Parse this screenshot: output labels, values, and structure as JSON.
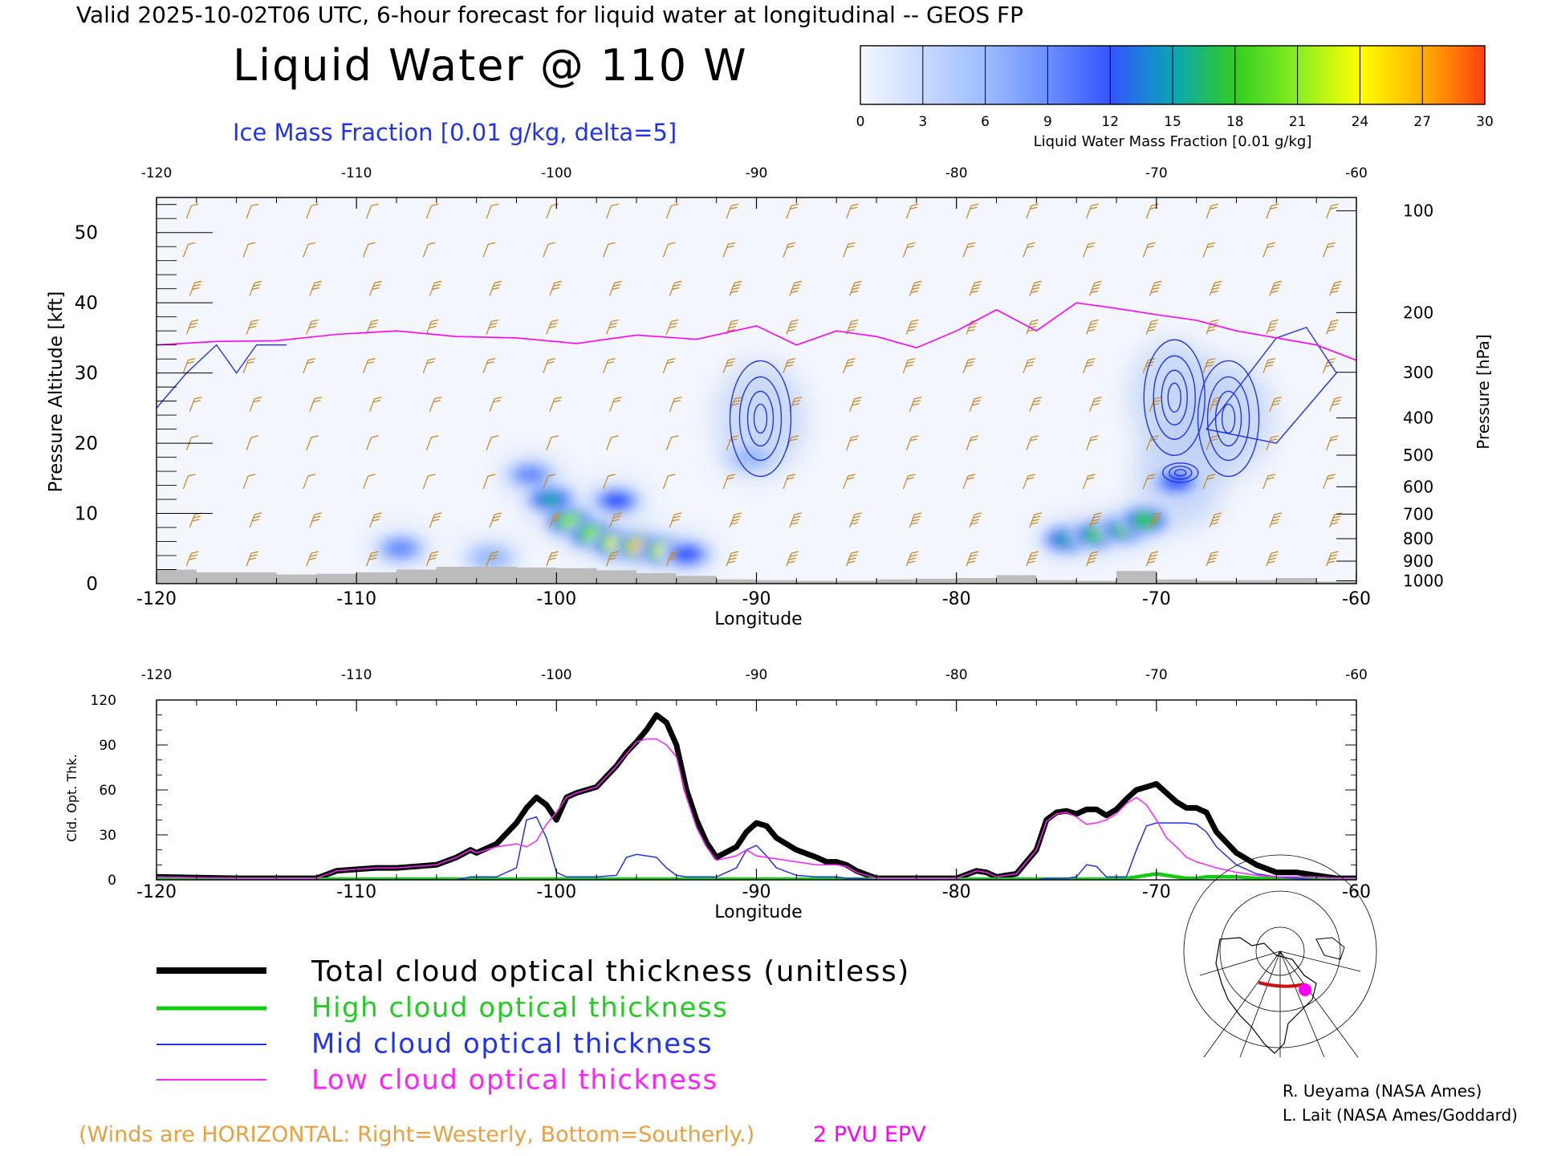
{
  "header": {
    "valid_line": "Valid 2025-10-02T06 UTC, 6-hour forecast for liquid water at longitudinal -- GEOS FP",
    "title": "Liquid Water @ 110 W",
    "ice_label": "Ice Mass Fraction [0.01 g/kg, delta=5]"
  },
  "colorbar": {
    "ticks": [
      "0",
      "3",
      "6",
      "9",
      "12",
      "15",
      "18",
      "21",
      "24",
      "27",
      "30"
    ],
    "label": "Liquid Water Mass Fraction [0.01 g/kg]",
    "colors": [
      "#f4f7ff",
      "#c9d9ff",
      "#9cbcff",
      "#6a8eff",
      "#3355ff",
      "#0aa5b5",
      "#33cc22",
      "#88ee22",
      "#ffff00",
      "#ffb000",
      "#ff4010"
    ]
  },
  "colors": {
    "wind_barbs": "#c88a2a",
    "epv": "#ff00ff",
    "ice": "#2233ee",
    "terrain": "#bcbcbc",
    "total": "#000000",
    "high": "#11cc11",
    "mid": "#2233ee",
    "low": "#ff22ff"
  },
  "chart_data": [
    {
      "type": "heatmap",
      "title": "Liquid Water @ 110 W",
      "xlabel": "Longitude",
      "ylabel": "Pressure Altitude [kft]",
      "ylabel_right": "Pressure [hPa]",
      "xlim": [
        -120,
        -60
      ],
      "ylim": [
        0,
        55
      ],
      "x_ticks": [
        "-120",
        "-110",
        "-100",
        "-90",
        "-80",
        "-70",
        "-60"
      ],
      "y_ticks": [
        "0",
        "10",
        "20",
        "30",
        "40",
        "50"
      ],
      "pressure_ticks": [
        "100",
        "200",
        "300",
        "400",
        "500",
        "600",
        "700",
        "800",
        "900",
        "1000"
      ],
      "pressure_tick_alt_kft": [
        53.1,
        38.6,
        30.1,
        23.6,
        18.3,
        13.8,
        9.9,
        6.4,
        3.2,
        0.4
      ],
      "liquid_water_blobs": [
        {
          "lon": -101.3,
          "alt": 15.5,
          "value": 9
        },
        {
          "lon": -100.3,
          "alt": 12.0,
          "value": 15
        },
        {
          "lon": -99.3,
          "alt": 8.8,
          "value": 20
        },
        {
          "lon": -98.2,
          "alt": 7.0,
          "value": 21
        },
        {
          "lon": -97.0,
          "alt": 5.6,
          "value": 25
        },
        {
          "lon": -95.8,
          "alt": 5.2,
          "value": 28
        },
        {
          "lon": -94.6,
          "alt": 4.6,
          "value": 24
        },
        {
          "lon": -93.5,
          "alt": 4.2,
          "value": 13
        },
        {
          "lon": -97.0,
          "alt": 11.8,
          "value": 13
        },
        {
          "lon": -103.3,
          "alt": 3.7,
          "value": 7
        },
        {
          "lon": -107.8,
          "alt": 5.0,
          "value": 8
        },
        {
          "lon": -74.5,
          "alt": 6.3,
          "value": 16
        },
        {
          "lon": -73.0,
          "alt": 7.0,
          "value": 17
        },
        {
          "lon": -71.6,
          "alt": 7.8,
          "value": 18
        },
        {
          "lon": -70.6,
          "alt": 9.0,
          "value": 17
        },
        {
          "lon": -69.0,
          "alt": 14.5,
          "value": 12
        },
        {
          "lon": -90.3,
          "alt": 18.0,
          "value": 5
        }
      ],
      "ice_contour_centers": [
        {
          "lon": -89.8,
          "alt": 23.5
        },
        {
          "lon": -69.1,
          "alt": 26.5
        },
        {
          "lon": -66.4,
          "alt": 23.5
        },
        {
          "lon": -68.8,
          "alt": 15.8
        }
      ],
      "epv_2pvu_alt_kft": {
        "lon": [
          -120,
          -117,
          -114,
          -111,
          -108,
          -105,
          -102,
          -99,
          -96,
          -93,
          -90,
          -88,
          -86,
          -84,
          -82,
          -80,
          -78,
          -76,
          -74,
          -72,
          -70,
          -68,
          -66,
          -64,
          -62,
          -60
        ],
        "alt": [
          34,
          34.5,
          34.6,
          35.5,
          36.0,
          35.2,
          35.0,
          34.2,
          35.4,
          34.8,
          36.7,
          34.0,
          36.0,
          35.2,
          33.6,
          36.0,
          39.0,
          36.0,
          40.0,
          39.2,
          38.3,
          37.5,
          36.0,
          35.0,
          34.0,
          31.8
        ]
      },
      "terrain_alt_kft": {
        "lon": [
          -120,
          -118,
          -116,
          -114,
          -112,
          -110,
          -108,
          -106,
          -104,
          -102,
          -100,
          -98,
          -96,
          -94,
          -92,
          -90,
          -88,
          -86,
          -84,
          -82,
          -80,
          -78,
          -76,
          -74,
          -72,
          -70,
          -68,
          -66,
          -64,
          -62,
          -60
        ],
        "alt": [
          2.0,
          1.6,
          1.6,
          1.3,
          1.4,
          1.6,
          2.0,
          2.4,
          2.4,
          2.3,
          2.2,
          1.9,
          1.5,
          1.1,
          0.6,
          0.5,
          0.4,
          0.4,
          0.6,
          0.7,
          0.8,
          1.2,
          0.5,
          0.4,
          1.8,
          0.6,
          0.4,
          0.5,
          0.8,
          0.3,
          0.2
        ]
      },
      "legend_extra": [
        "(Winds are HORIZONTAL: Right=Westerly, Bottom=Southerly.)",
        "2 PVU EPV"
      ]
    },
    {
      "type": "line",
      "xlabel": "Longitude",
      "ylabel": "Cld. Opt. Thk.",
      "xlim": [
        -120,
        -60
      ],
      "ylim": [
        0,
        120
      ],
      "x_ticks": [
        "-120",
        "-110",
        "-100",
        "-90",
        "-80",
        "-70",
        "-60"
      ],
      "y_ticks": [
        "0",
        "30",
        "60",
        "90",
        "120"
      ],
      "x": [
        -120,
        -118,
        -116,
        -114,
        -112,
        -111,
        -110,
        -109,
        -108,
        -107,
        -106,
        -105,
        -104.3,
        -104,
        -103,
        -102,
        -101.5,
        -101,
        -100.5,
        -100,
        -99.5,
        -99,
        -98,
        -97,
        -96.5,
        -96,
        -95.5,
        -95,
        -94.5,
        -94,
        -93.5,
        -93,
        -92.5,
        -92,
        -91,
        -90.5,
        -90,
        -89.5,
        -89,
        -88,
        -87,
        -86.5,
        -86,
        -85.5,
        -85,
        -84,
        -82,
        -80,
        -79,
        -78.5,
        -78,
        -77,
        -76,
        -75.5,
        -75,
        -74.5,
        -74,
        -73.5,
        -73,
        -72.5,
        -72,
        -71.5,
        -71,
        -70.5,
        -70,
        -69.5,
        -69,
        -68.5,
        -68,
        -67.5,
        -67,
        -66,
        -65,
        -64,
        -63,
        -62,
        -61,
        -60
      ],
      "series": [
        {
          "name": "Total cloud optical thickness (unitless)",
          "values": [
            2,
            1.5,
            1,
            1,
            1,
            6,
            7,
            8,
            8,
            9,
            10,
            15,
            20,
            18,
            24,
            38,
            48,
            55,
            50,
            40,
            55,
            58,
            62,
            76,
            85,
            92,
            100,
            110,
            105,
            90,
            60,
            40,
            25,
            15,
            22,
            32,
            38,
            36,
            28,
            20,
            15,
            12,
            12,
            10,
            6,
            1,
            1,
            1,
            6,
            5,
            2,
            4,
            20,
            40,
            45,
            46,
            44,
            47,
            47,
            43,
            47,
            54,
            60,
            62,
            64,
            58,
            52,
            48,
            48,
            45,
            32,
            18,
            10,
            5,
            5,
            3,
            1,
            1
          ]
        },
        {
          "name": "High cloud optical thickness",
          "values": [
            0.5,
            0.5,
            0.5,
            0.5,
            0.5,
            0.5,
            0.5,
            0.5,
            0.5,
            0.5,
            0.5,
            0.5,
            0.5,
            0.5,
            0.5,
            0.5,
            0.5,
            0.5,
            0.5,
            0.5,
            0.5,
            0.5,
            0.5,
            0.5,
            0.5,
            0.5,
            0.5,
            0.5,
            0.5,
            0.5,
            0.5,
            0.5,
            0.5,
            0.5,
            0.5,
            0.5,
            0.5,
            0.5,
            0.5,
            0.5,
            0.5,
            0.5,
            0.5,
            0.5,
            0.5,
            0.5,
            0.5,
            0.5,
            0.5,
            0.5,
            0.5,
            0.5,
            0.5,
            0.5,
            0.5,
            0.5,
            0.5,
            0.5,
            0.5,
            0.5,
            0.5,
            1,
            2,
            3,
            4,
            3,
            2,
            1,
            1,
            2,
            2,
            2,
            1,
            1,
            0.5,
            0.5,
            0.5,
            0.5
          ]
        },
        {
          "name": "Mid cloud optical thickness",
          "values": [
            0,
            0,
            0,
            0,
            0,
            0,
            0,
            0,
            0,
            0,
            0,
            0,
            2,
            2,
            2,
            8,
            40,
            42,
            28,
            5,
            2,
            2,
            2,
            3,
            15,
            17,
            16,
            15,
            8,
            3,
            2,
            2,
            2,
            2,
            8,
            20,
            23,
            16,
            8,
            3,
            2,
            2,
            2,
            1,
            1,
            0,
            0,
            0,
            0,
            0,
            0,
            0,
            0,
            1,
            1,
            1,
            2,
            10,
            9,
            2,
            2,
            2,
            20,
            36,
            38,
            38,
            38,
            38,
            37,
            32,
            22,
            10,
            4,
            2,
            1,
            0,
            0,
            0
          ]
        },
        {
          "name": "Low cloud optical thickness",
          "values": [
            2,
            1.5,
            1,
            1,
            1,
            6,
            7,
            8,
            8,
            9,
            10,
            15,
            20,
            18,
            22,
            24,
            22,
            26,
            37,
            45,
            55,
            58,
            62,
            76,
            84,
            92,
            94,
            94,
            90,
            82,
            55,
            35,
            22,
            13,
            16,
            20,
            16,
            15,
            14,
            12,
            10,
            10,
            10,
            9,
            5,
            1,
            1,
            1,
            6,
            5,
            2,
            4,
            20,
            39,
            44,
            45,
            42,
            37,
            38,
            40,
            44,
            51,
            55,
            50,
            40,
            28,
            22,
            15,
            12,
            10,
            8,
            5,
            3,
            2,
            2,
            2,
            1,
            1
          ]
        }
      ]
    }
  ],
  "legend": {
    "total": "Total cloud optical thickness (unitless)",
    "high": "High cloud optical thickness",
    "mid": "Mid cloud optical thickness",
    "low": "Low cloud optical thickness"
  },
  "footer": {
    "winds_note": "(Winds are HORIZONTAL: Right=Westerly, Bottom=Southerly.)",
    "epv_label": "2 PVU EPV",
    "credit1": "R. Ueyama (NASA Ames)",
    "credit2": "L. Lait (NASA Ames/Goddard)"
  }
}
